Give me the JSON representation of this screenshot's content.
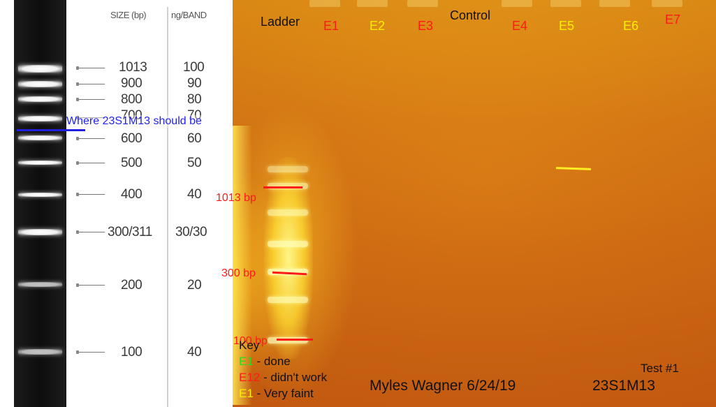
{
  "reference_ladder": {
    "size_header": "SIZE (bp)",
    "ng_header": "ng/BAND",
    "rows": [
      {
        "size": "1013",
        "ng": "100"
      },
      {
        "size": "900",
        "ng": "90"
      },
      {
        "size": "800",
        "ng": "80"
      },
      {
        "size": "700",
        "ng": "70"
      },
      {
        "size": "600",
        "ng": "60"
      },
      {
        "size": "500",
        "ng": "50"
      },
      {
        "size": "400",
        "ng": "40"
      },
      {
        "size": "300/311",
        "ng": "30/30"
      },
      {
        "size": "200",
        "ng": "20"
      },
      {
        "size": "100",
        "ng": "40"
      }
    ],
    "marker_text": "Where 23S1M13 should be",
    "marker_color": "#2020e0"
  },
  "gel": {
    "lanes": [
      {
        "label": "Ladder",
        "color": "black"
      },
      {
        "label": "E1",
        "color": "red"
      },
      {
        "label": "E2",
        "color": "yellow"
      },
      {
        "label": "E3",
        "color": "red"
      },
      {
        "label": "Control",
        "color": "black"
      },
      {
        "label": "E4",
        "color": "red"
      },
      {
        "label": "E5",
        "color": "yellow"
      },
      {
        "label": "E6",
        "color": "yellow"
      },
      {
        "label": "E7",
        "color": "red"
      }
    ],
    "bp_markers": [
      "1013 bp",
      "300 bp",
      "100 bp"
    ],
    "key": {
      "title": "Key",
      "items": [
        {
          "code": "E1",
          "text": "- done",
          "color": "#22dd22"
        },
        {
          "code": "E12",
          "text": "- didn't work",
          "color": "#ff1a1a"
        },
        {
          "code": "E1",
          "text": "- Very faint",
          "color": "#ffee00"
        }
      ]
    },
    "author_date": "Myles Wagner 6/24/19",
    "test_label": "Test #1",
    "sample_name": "23S1M13"
  }
}
